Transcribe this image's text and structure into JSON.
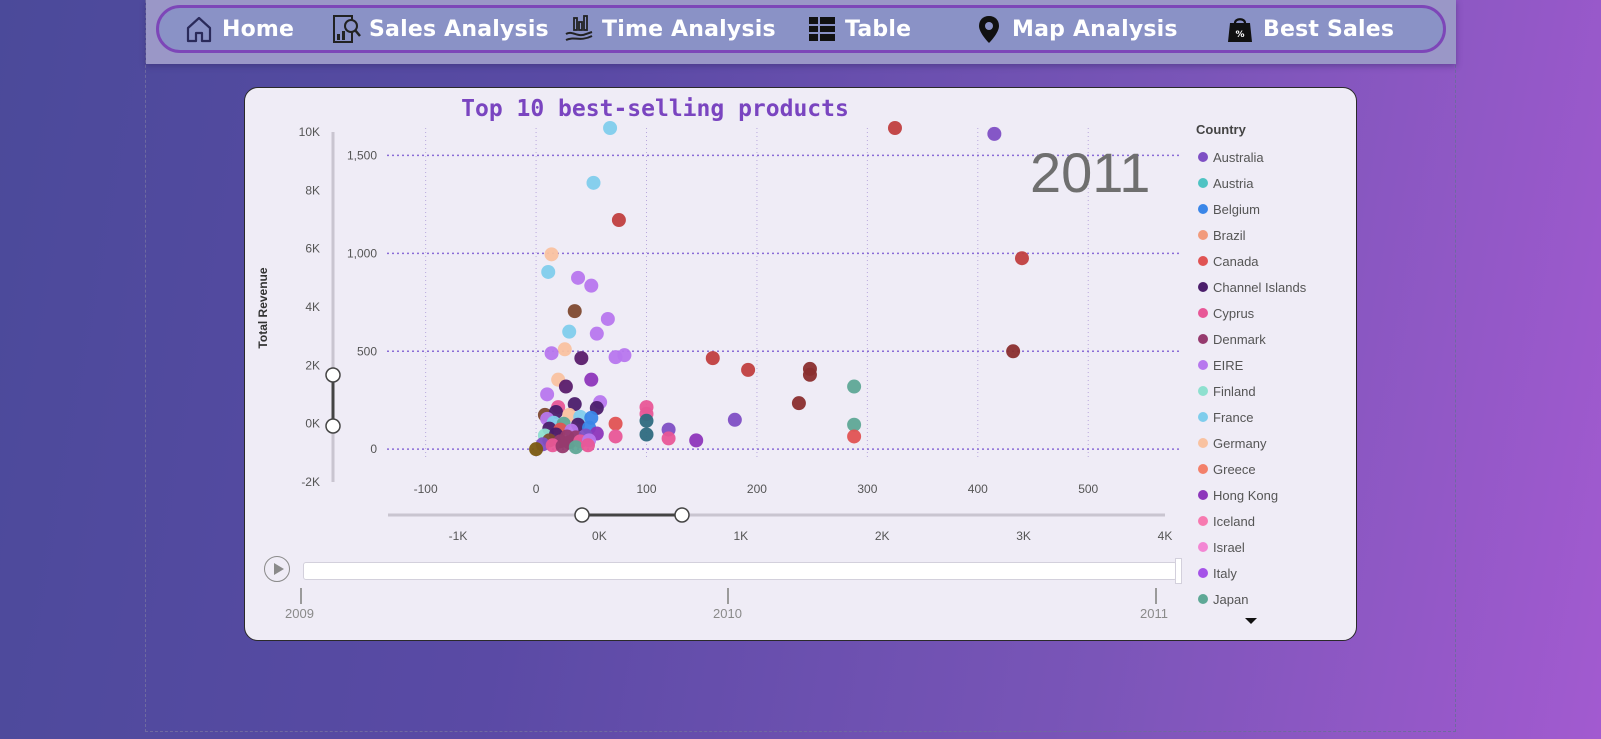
{
  "nav": {
    "items": [
      {
        "label": "Home",
        "icon": "home-icon"
      },
      {
        "label": "Sales Analysis",
        "icon": "report-magnifier-icon"
      },
      {
        "label": "Time Analysis",
        "icon": "hand-chart-icon"
      },
      {
        "label": "Table",
        "icon": "table-icon"
      },
      {
        "label": "Map Analysis",
        "icon": "map-pin-icon"
      },
      {
        "label": "Best Sales",
        "icon": "shopping-bag-percent-icon"
      }
    ]
  },
  "chart": {
    "title": "Top 10 best-selling products",
    "ylabel": "Total Revenue",
    "year_watermark": "2011",
    "play_icon": "play-icon"
  },
  "chart_data": {
    "type": "scatter",
    "title": "Top 10 best-selling products",
    "ylabel": "Total Revenue",
    "x_ticks": [
      "-100",
      "0",
      "100",
      "200",
      "300",
      "400",
      "500"
    ],
    "y_ticks": [
      "0",
      "500",
      "1,000",
      "1,500"
    ],
    "xlim": [
      -135,
      565
    ],
    "ylim": [
      -45,
      1640
    ],
    "grid": true,
    "legend_title": "Country",
    "legend_position": "right",
    "legend": [
      {
        "name": "Australia",
        "color": "#7e4fc4"
      },
      {
        "name": "Austria",
        "color": "#4fc3c3"
      },
      {
        "name": "Belgium",
        "color": "#3a86e8"
      },
      {
        "name": "Brazil",
        "color": "#f29b7c"
      },
      {
        "name": "Canada",
        "color": "#e05353"
      },
      {
        "name": "Channel Islands",
        "color": "#4b1e6b"
      },
      {
        "name": "Cyprus",
        "color": "#e85797"
      },
      {
        "name": "Denmark",
        "color": "#963a6e"
      },
      {
        "name": "EIRE",
        "color": "#b777ee"
      },
      {
        "name": "Finland",
        "color": "#8ee0cf"
      },
      {
        "name": "France",
        "color": "#7fcdec"
      },
      {
        "name": "Germany",
        "color": "#f9c2a0"
      },
      {
        "name": "Greece",
        "color": "#f3806a"
      },
      {
        "name": "Hong Kong",
        "color": "#8d36bb"
      },
      {
        "name": "Iceland",
        "color": "#f77ab0"
      },
      {
        "name": "Israel",
        "color": "#f387d4"
      },
      {
        "name": "Italy",
        "color": "#a552e8"
      },
      {
        "name": "Japan",
        "color": "#5ea896"
      }
    ],
    "points": [
      {
        "x": 67,
        "y": 1640,
        "c": "#7fcdec"
      },
      {
        "x": 52,
        "y": 1360,
        "c": "#7fcdec"
      },
      {
        "x": 75,
        "y": 1170,
        "c": "#c03f3f"
      },
      {
        "x": 14,
        "y": 995,
        "c": "#f9c2a0"
      },
      {
        "x": 11,
        "y": 905,
        "c": "#7fcdec"
      },
      {
        "x": 38,
        "y": 875,
        "c": "#b777ee"
      },
      {
        "x": 50,
        "y": 835,
        "c": "#b777ee"
      },
      {
        "x": 35,
        "y": 705,
        "c": "#7e4a30"
      },
      {
        "x": 65,
        "y": 665,
        "c": "#b777ee"
      },
      {
        "x": 30,
        "y": 600,
        "c": "#7fcdec"
      },
      {
        "x": 55,
        "y": 590,
        "c": "#b777ee"
      },
      {
        "x": 26,
        "y": 510,
        "c": "#f9c2a0"
      },
      {
        "x": 14,
        "y": 490,
        "c": "#b777ee"
      },
      {
        "x": 41,
        "y": 465,
        "c": "#5a1e6b"
      },
      {
        "x": 72,
        "y": 470,
        "c": "#b777ee"
      },
      {
        "x": 80,
        "y": 480,
        "c": "#b777ee"
      },
      {
        "x": 20,
        "y": 355,
        "c": "#f9c2a0"
      },
      {
        "x": 27,
        "y": 320,
        "c": "#5a1e6b"
      },
      {
        "x": 50,
        "y": 355,
        "c": "#8d36bb"
      },
      {
        "x": 10,
        "y": 280,
        "c": "#b777ee"
      },
      {
        "x": 58,
        "y": 240,
        "c": "#b777ee"
      },
      {
        "x": 35,
        "y": 230,
        "c": "#4b1e6b"
      },
      {
        "x": 20,
        "y": 215,
        "c": "#e85797"
      },
      {
        "x": 55,
        "y": 210,
        "c": "#4b1e6b"
      },
      {
        "x": 8,
        "y": 175,
        "c": "#7e4a30"
      },
      {
        "x": 18,
        "y": 190,
        "c": "#4b1e6b"
      },
      {
        "x": 30,
        "y": 175,
        "c": "#f9c2a0"
      },
      {
        "x": 40,
        "y": 165,
        "c": "#7fcdec"
      },
      {
        "x": 50,
        "y": 160,
        "c": "#3a86e8"
      },
      {
        "x": 10,
        "y": 155,
        "c": "#b777ee"
      },
      {
        "x": 16,
        "y": 135,
        "c": "#7fcdec"
      },
      {
        "x": 25,
        "y": 130,
        "c": "#5ea896"
      },
      {
        "x": 38,
        "y": 125,
        "c": "#4b1e6b"
      },
      {
        "x": 48,
        "y": 110,
        "c": "#3a86e8"
      },
      {
        "x": 12,
        "y": 105,
        "c": "#4b1e6b"
      },
      {
        "x": 22,
        "y": 100,
        "c": "#e05353"
      },
      {
        "x": 32,
        "y": 95,
        "c": "#b777ee"
      },
      {
        "x": 55,
        "y": 80,
        "c": "#8d36bb"
      },
      {
        "x": 8,
        "y": 70,
        "c": "#8ee0cf"
      },
      {
        "x": 18,
        "y": 75,
        "c": "#4b1e6b"
      },
      {
        "x": 28,
        "y": 65,
        "c": "#963a6e"
      },
      {
        "x": 36,
        "y": 60,
        "c": "#963a6e"
      },
      {
        "x": 45,
        "y": 70,
        "c": "#7e4fc4"
      },
      {
        "x": 12,
        "y": 45,
        "c": "#7e4a30"
      },
      {
        "x": 22,
        "y": 40,
        "c": "#963a6e"
      },
      {
        "x": 30,
        "y": 35,
        "c": "#963a6e"
      },
      {
        "x": 40,
        "y": 40,
        "c": "#e85797"
      },
      {
        "x": 48,
        "y": 45,
        "c": "#b777ee"
      },
      {
        "x": 6,
        "y": 25,
        "c": "#7e4fc4"
      },
      {
        "x": 15,
        "y": 20,
        "c": "#e85797"
      },
      {
        "x": 24,
        "y": 15,
        "c": "#963a6e"
      },
      {
        "x": 36,
        "y": 10,
        "c": "#5ea896"
      },
      {
        "x": 47,
        "y": 20,
        "c": "#e85797"
      },
      {
        "x": 0,
        "y": 0,
        "c": "#7a5a10"
      },
      {
        "x": 72,
        "y": 130,
        "c": "#e05353"
      },
      {
        "x": 72,
        "y": 65,
        "c": "#e85797"
      },
      {
        "x": 100,
        "y": 215,
        "c": "#e85797"
      },
      {
        "x": 100,
        "y": 180,
        "c": "#e85797"
      },
      {
        "x": 100,
        "y": 145,
        "c": "#2e6b80"
      },
      {
        "x": 100,
        "y": 75,
        "c": "#2e6b80"
      },
      {
        "x": 120,
        "y": 100,
        "c": "#7e4fc4"
      },
      {
        "x": 120,
        "y": 55,
        "c": "#e85797"
      },
      {
        "x": 145,
        "y": 45,
        "c": "#8d36bb"
      },
      {
        "x": 160,
        "y": 465,
        "c": "#c03f3f"
      },
      {
        "x": 180,
        "y": 150,
        "c": "#7e4fc4"
      },
      {
        "x": 192,
        "y": 405,
        "c": "#c03f3f"
      },
      {
        "x": 238,
        "y": 235,
        "c": "#8a2e2e"
      },
      {
        "x": 248,
        "y": 410,
        "c": "#8a2e2e"
      },
      {
        "x": 248,
        "y": 380,
        "c": "#8a2e2e"
      },
      {
        "x": 288,
        "y": 320,
        "c": "#5ea896"
      },
      {
        "x": 288,
        "y": 125,
        "c": "#5ea896"
      },
      {
        "x": 288,
        "y": 65,
        "c": "#e05353"
      },
      {
        "x": 325,
        "y": 1640,
        "c": "#c03f3f"
      },
      {
        "x": 415,
        "y": 1610,
        "c": "#7e4fc4"
      },
      {
        "x": 440,
        "y": 975,
        "c": "#c03f3f"
      },
      {
        "x": 432,
        "y": 500,
        "c": "#8a2e2e"
      }
    ]
  },
  "slicers": {
    "y_ticks": [
      "10K",
      "8K",
      "6K",
      "4K",
      "2K",
      "0K",
      "-2K"
    ],
    "x_ticks": [
      "-1K",
      "0K",
      "1K",
      "2K",
      "3K",
      "4K"
    ]
  },
  "timeline": {
    "labels": [
      "2009",
      "2010",
      "2011"
    ],
    "progress": 1.0
  }
}
